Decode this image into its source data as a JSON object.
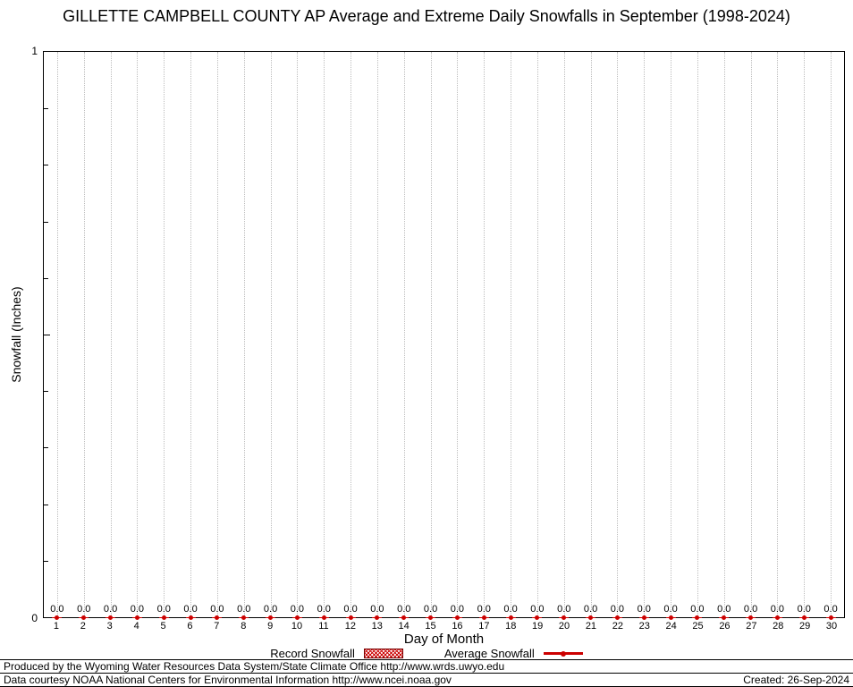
{
  "chart_data": {
    "type": "line",
    "title": "GILLETTE CAMPBELL COUNTY AP Average and Extreme Daily Snowfalls in September (1998-2024)",
    "xlabel": "Day of Month",
    "ylabel": "Snowfall (Inches)",
    "x": [
      1,
      2,
      3,
      4,
      5,
      6,
      7,
      8,
      9,
      10,
      11,
      12,
      13,
      14,
      15,
      16,
      17,
      18,
      19,
      20,
      21,
      22,
      23,
      24,
      25,
      26,
      27,
      28,
      29,
      30
    ],
    "series": [
      {
        "name": "Record Snowfall",
        "values": [
          0.0,
          0.0,
          0.0,
          0.0,
          0.0,
          0.0,
          0.0,
          0.0,
          0.0,
          0.0,
          0.0,
          0.0,
          0.0,
          0.0,
          0.0,
          0.0,
          0.0,
          0.0,
          0.0,
          0.0,
          0.0,
          0.0,
          0.0,
          0.0,
          0.0,
          0.0,
          0.0,
          0.0,
          0.0,
          0.0
        ]
      },
      {
        "name": "Average Snowfall",
        "values": [
          0.0,
          0.0,
          0.0,
          0.0,
          0.0,
          0.0,
          0.0,
          0.0,
          0.0,
          0.0,
          0.0,
          0.0,
          0.0,
          0.0,
          0.0,
          0.0,
          0.0,
          0.0,
          0.0,
          0.0,
          0.0,
          0.0,
          0.0,
          0.0,
          0.0,
          0.0,
          0.0,
          0.0,
          0.0,
          0.0
        ]
      }
    ],
    "ylim": [
      0,
      1
    ],
    "ytick_labels": {
      "top": "1",
      "bottom": "0"
    },
    "grid": "vertical-dotted",
    "legend_position": "bottom"
  },
  "legend": {
    "record_label": "Record Snowfall",
    "average_label": "Average Snowfall"
  },
  "footer": {
    "line1": "Produced by the Wyoming Water Resources Data System/State Climate Office http://www.wrds.uwyo.edu",
    "line2": "Data courtesy NOAA National Centers for Environmental Information http://www.ncei.noaa.gov",
    "created": "Created: 26-Sep-2024"
  },
  "colors": {
    "marker": "#cc0000",
    "grid": "#bdbdbd",
    "axis": "#000000"
  }
}
